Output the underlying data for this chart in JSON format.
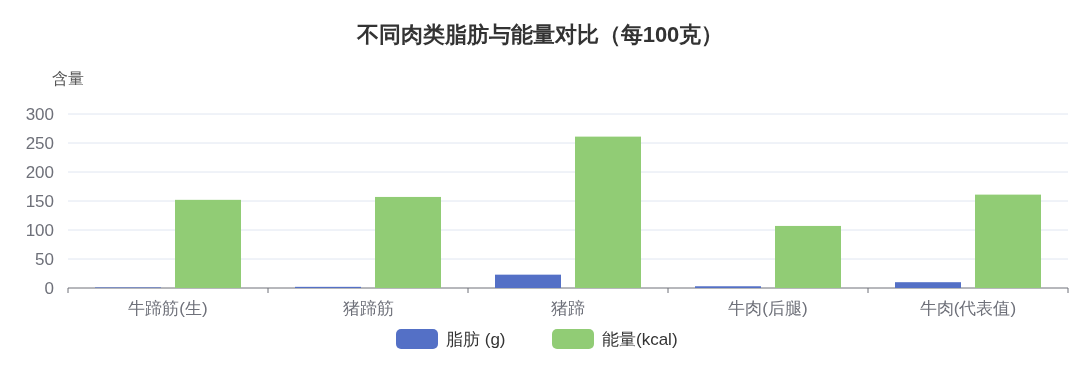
{
  "chart_data": {
    "type": "bar",
    "title": "不同肉类脂肪与能量对比（每100克）",
    "ylabel": "含量",
    "categories": [
      "牛蹄筋(生)",
      "猪蹄筋",
      "猪蹄",
      "牛肉(后腿)",
      "牛肉(代表值)"
    ],
    "series": [
      {
        "name": "脂肪 (g)",
        "color": "#5470c6",
        "values": [
          1,
          2,
          23,
          3,
          10
        ]
      },
      {
        "name": "能量(kcal)",
        "color": "#91cc75",
        "values": [
          152,
          157,
          261,
          107,
          161
        ]
      }
    ],
    "ylim": [
      0,
      300
    ],
    "yticks": [
      0,
      50,
      100,
      150,
      200,
      250,
      300
    ],
    "grid": "y",
    "legend": "bottom"
  }
}
